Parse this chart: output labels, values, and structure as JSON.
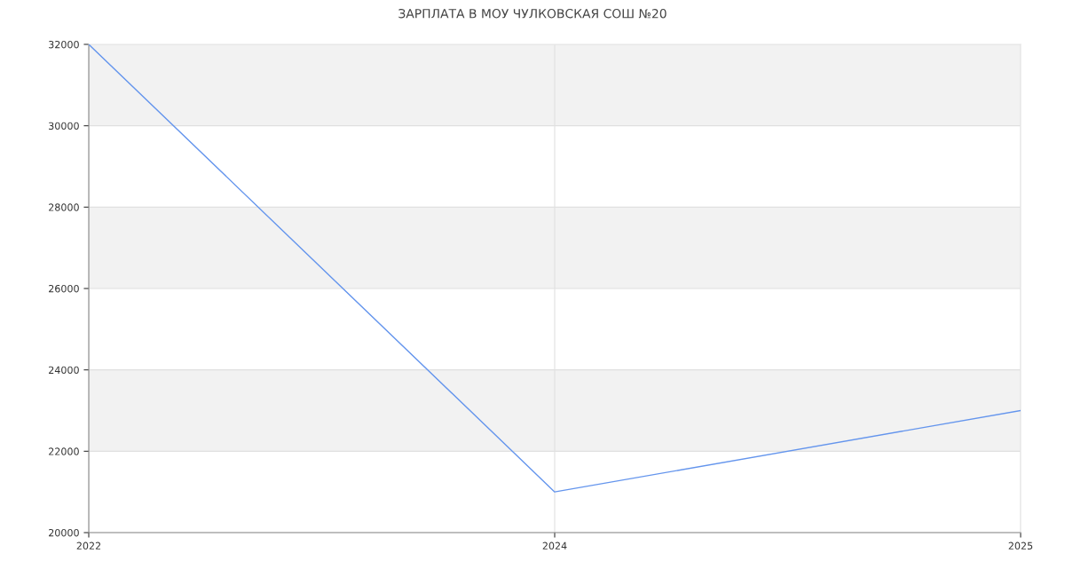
{
  "chart_data": {
    "type": "line",
    "title": "ЗАРПЛАТА В МОУ ЧУЛКОВСКАЯ СОШ №20",
    "categories": [
      "2022",
      "2024",
      "2025"
    ],
    "series": [
      {
        "color": "#6495ed",
        "values": [
          32000,
          21000,
          23000
        ]
      }
    ],
    "ylim": [
      20000,
      32000
    ],
    "yticks": [
      20000,
      22000,
      24000,
      26000,
      28000,
      30000,
      32000
    ],
    "bands": [
      {
        "axis": "y",
        "from": 22000,
        "to": 24000,
        "color": "#f2f2f2"
      },
      {
        "axis": "y",
        "from": 26000,
        "to": 28000,
        "color": "#f2f2f2"
      },
      {
        "axis": "y",
        "from": 30000,
        "to": 32000,
        "color": "#f2f2f2"
      }
    ],
    "grid": true,
    "legend": false,
    "marker": "none",
    "line_style": "solid"
  }
}
